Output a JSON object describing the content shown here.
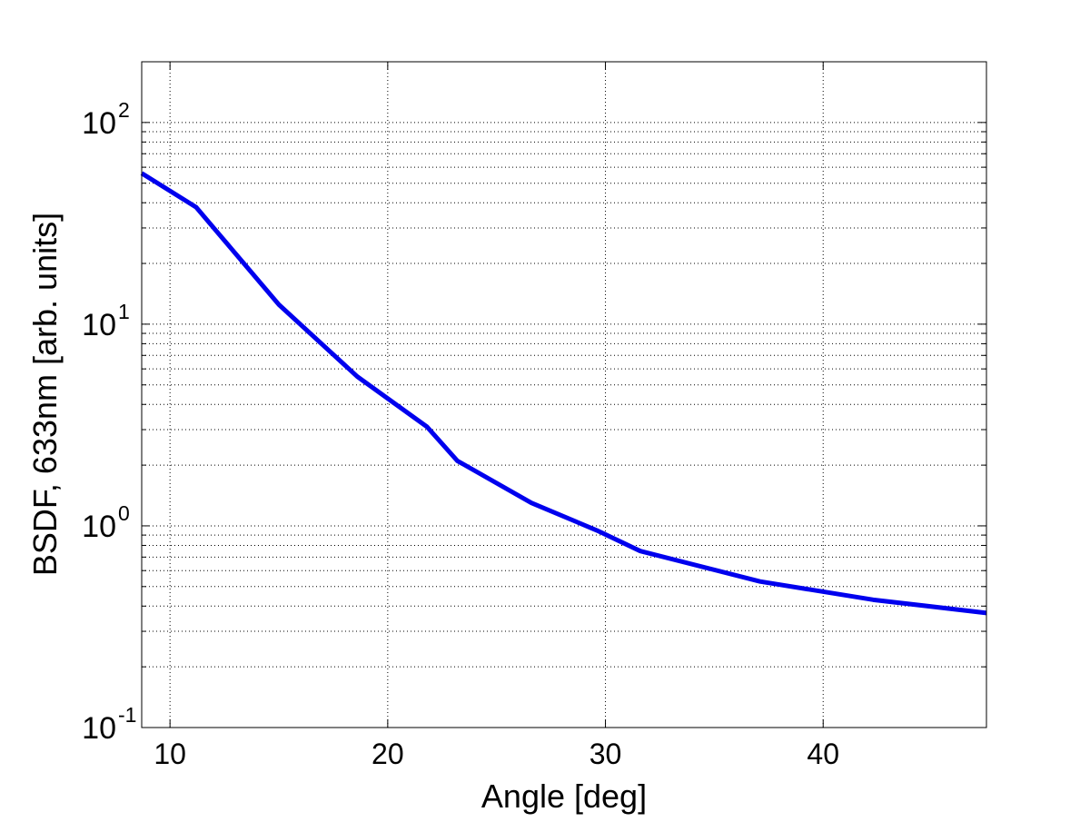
{
  "chart_data": {
    "type": "line",
    "title": "",
    "xlabel": "Angle [deg]",
    "ylabel": "BSDF, 633nm [arb. units]",
    "xlim": [
      8.7,
      47.5
    ],
    "ylim": [
      0.1,
      200
    ],
    "yscale": "log",
    "grid": true,
    "xticks": [
      10,
      20,
      30,
      40
    ],
    "xtick_labels": [
      "10",
      "20",
      "30",
      "40"
    ],
    "yticks": [
      0.1,
      1,
      10,
      100
    ],
    "ytick_labels": [
      {
        "base": "10",
        "exp": "-1"
      },
      {
        "base": "10",
        "exp": "0"
      },
      {
        "base": "10",
        "exp": "1"
      },
      {
        "base": "10",
        "exp": "2"
      }
    ],
    "series": [
      {
        "color": "#0000ee",
        "x": [
          8.7,
          11.2,
          15.0,
          18.6,
          21.8,
          23.2,
          26.6,
          29.6,
          31.6,
          37.1,
          42.3,
          47.5
        ],
        "y": [
          56,
          38,
          12.5,
          5.5,
          3.1,
          2.1,
          1.3,
          0.95,
          0.75,
          0.53,
          0.43,
          0.37
        ]
      }
    ]
  }
}
